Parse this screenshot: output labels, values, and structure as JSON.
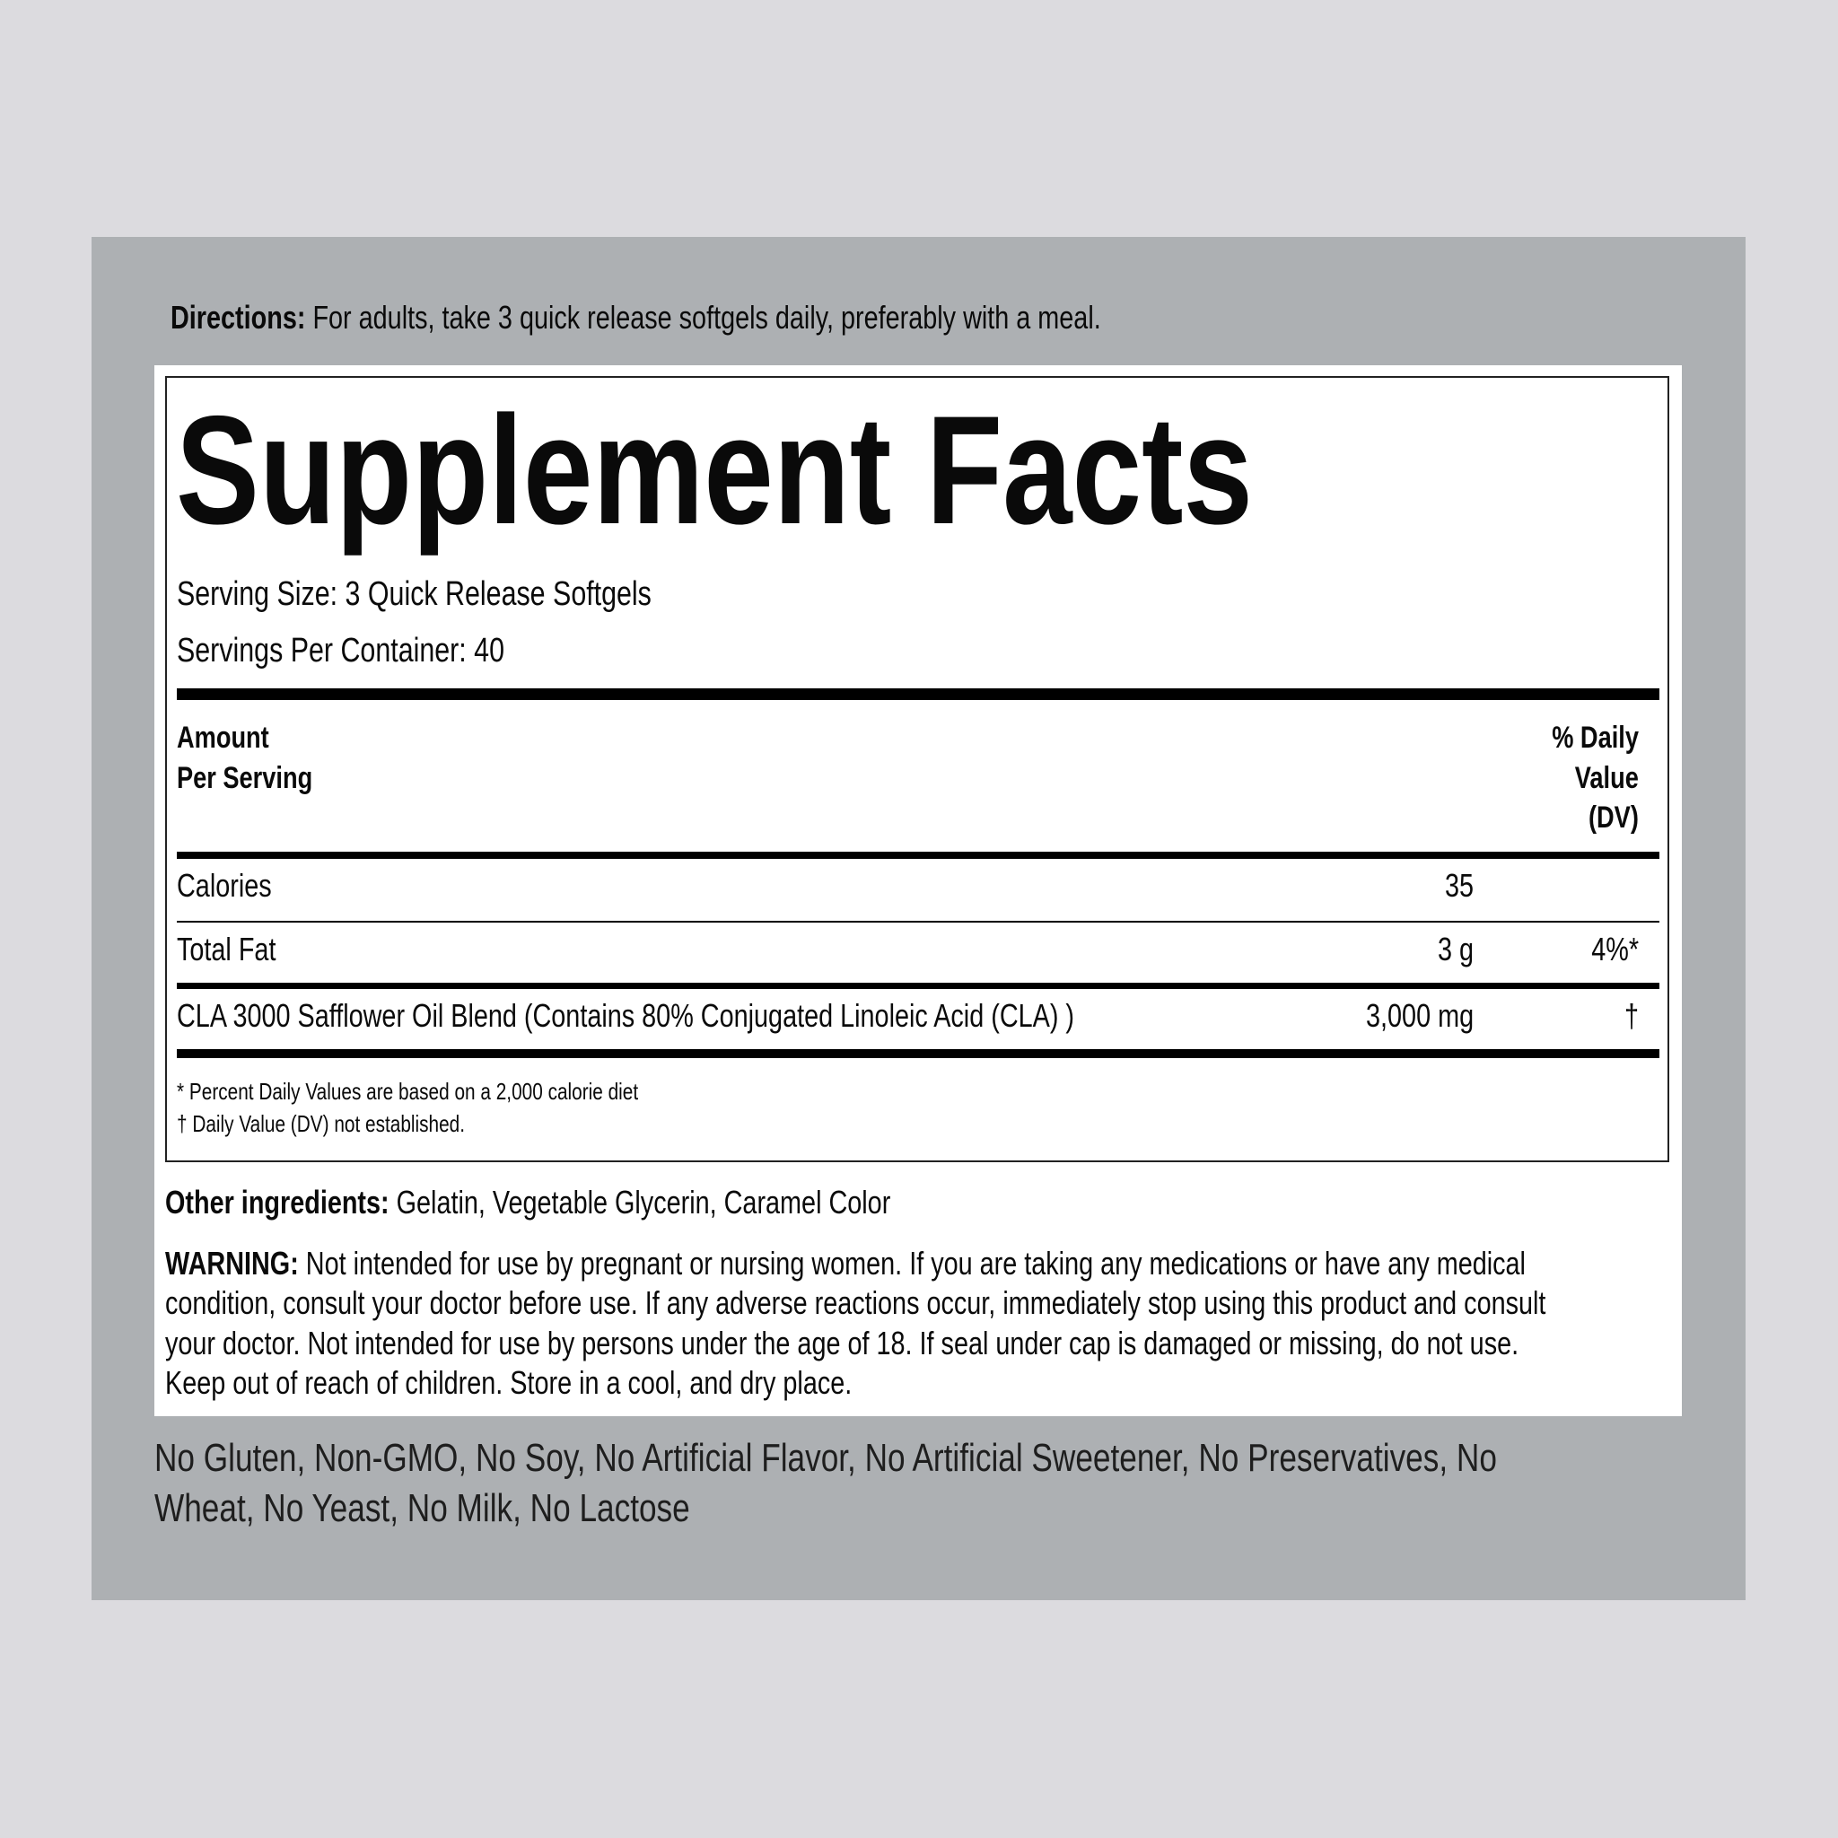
{
  "directions": {
    "label": "Directions:",
    "text": " For adults, take 3 quick release softgels daily, preferably with a meal."
  },
  "title": "Supplement Facts",
  "serving_size": "Serving Size: 3 Quick Release Softgels",
  "servings_per_container": "Servings Per Container: 40",
  "header": {
    "amount": [
      "Amount",
      "Per Serving"
    ],
    "dv": [
      "% Daily",
      "Value",
      "(DV)"
    ]
  },
  "rows": [
    {
      "name": "Calories",
      "amount": "35",
      "dv": ""
    },
    {
      "name": "Total Fat",
      "amount": "3 g",
      "dv": "4%*"
    },
    {
      "name": "CLA 3000 Safflower Oil Blend (Contains 80% Conjugated Linoleic Acid (CLA) )",
      "amount": "3,000 mg",
      "dv": "†"
    }
  ],
  "footnotes": [
    "* Percent Daily Values are based on a 2,000 calorie diet",
    "† Daily Value (DV) not established."
  ],
  "other_ingredients": {
    "label": "Other ingredients:",
    "text": " Gelatin, Vegetable Glycerin, Caramel Color"
  },
  "warning": {
    "label": "WARNING:",
    "lines": [
      " Not intended for use by pregnant or nursing women. If you are taking any medications or have any medical",
      "condition, consult your doctor before use. If any adverse reactions occur, immediately stop using this product and consult",
      "your doctor. Not intended for use by persons under the age of 18. If seal under cap is damaged or missing, do not use.",
      "Keep out of reach of children. Store in a cool, and dry place."
    ]
  },
  "free_from": [
    "No Gluten, Non-GMO, No Soy, No Artificial Flavor, No Artificial Sweetener, No Preservatives, No",
    "Wheat, No Yeast, No Milk, No Lactose"
  ]
}
